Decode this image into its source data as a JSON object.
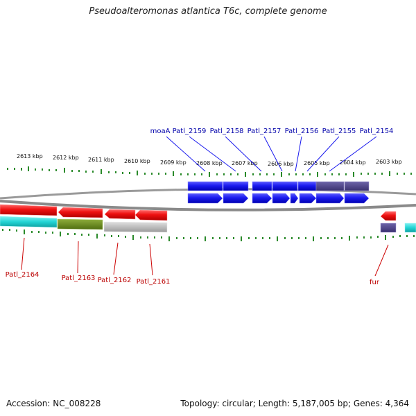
{
  "title": "Pseudoalteromonas atlantica T6c, complete genome",
  "footer": {
    "accession": "Accession: NC_008228",
    "summary": "Topology: circular; Length: 5,187,005 bp; Genes: 4,364"
  },
  "scale": {
    "tick_labels": [
      "2613 kbp",
      "2612 kbp",
      "2611 kbp",
      "2610 kbp",
      "2609 kbp",
      "2608 kbp",
      "2607 kbp",
      "2606 kbp",
      "2605 kbp",
      "2604 kbp",
      "2603 kbp"
    ]
  },
  "top_gene_labels": [
    "moaA",
    "Patl_2159",
    "Patl_2158",
    "Patl_2157",
    "Patl_2156",
    "Patl_2155",
    "Patl_2154"
  ],
  "bottom_gene_labels": [
    "Patl_2164",
    "Patl_2163",
    "Patl_2162",
    "Patl_2161",
    "fur"
  ],
  "colors": {
    "forward_gene": "#1a1aee",
    "forward_gene_alt": "#4a3f8c",
    "reverse_gene": "#ee1111",
    "cyan_feature": "#22d4d4",
    "olive_feature": "#6f8f22",
    "gray_feature": "#b8b8b8",
    "tick": "#2a8a2a",
    "top_label": "#0000aa",
    "bottom_label": "#bb0000",
    "backbone": "#888888"
  }
}
